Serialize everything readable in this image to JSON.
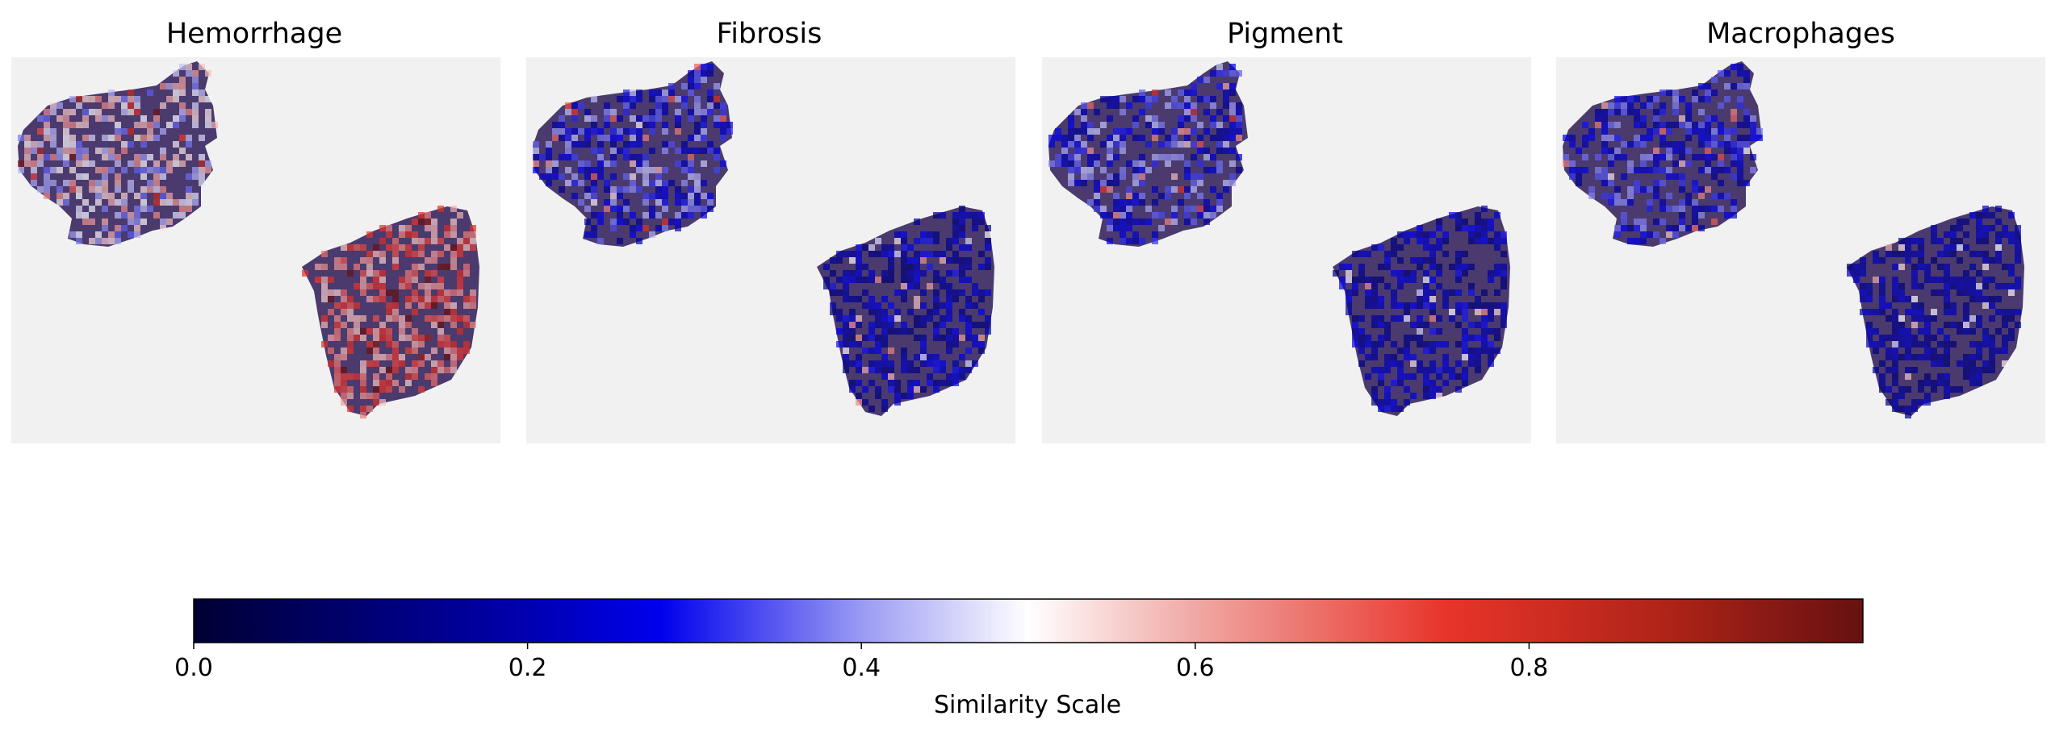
{
  "chart_data": [
    {
      "type": "heatmap",
      "title": "Hemorrhage",
      "accent": "#c8322a"
    },
    {
      "type": "heatmap",
      "title": "Fibrosis",
      "accent": "#c8322a"
    },
    {
      "type": "heatmap",
      "title": "Pigment",
      "accent": "#c8322a"
    },
    {
      "type": "heatmap",
      "title": "Macrophages",
      "accent": "#c8322a"
    }
  ],
  "colorbar": {
    "label": "Similarity Scale",
    "range": [
      0,
      1
    ],
    "ticks": [
      0.0,
      0.2,
      0.4,
      0.6,
      0.8
    ],
    "tick_labels": [
      "0.0",
      "0.2",
      "0.4",
      "0.6",
      "0.8"
    ],
    "colormap": [
      "#000033",
      "#0000e6",
      "#ffffff",
      "#e8342a",
      "#661111"
    ]
  },
  "colors": {
    "tissue_base": "#4a3a6e",
    "background": "#f1f1f1"
  }
}
